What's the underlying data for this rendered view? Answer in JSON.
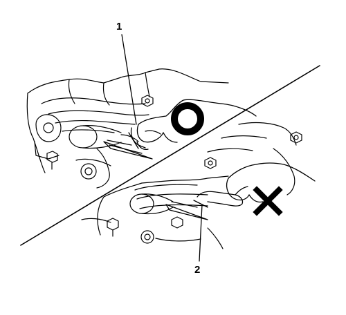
{
  "callouts": [
    {
      "label": "1"
    },
    {
      "label": "2"
    }
  ],
  "marks": {
    "correct": {
      "meaning": "correct",
      "symbol": "O",
      "color": "#000000"
    },
    "incorrect": {
      "meaning": "incorrect",
      "symbol": "X",
      "color": "#000000"
    }
  }
}
